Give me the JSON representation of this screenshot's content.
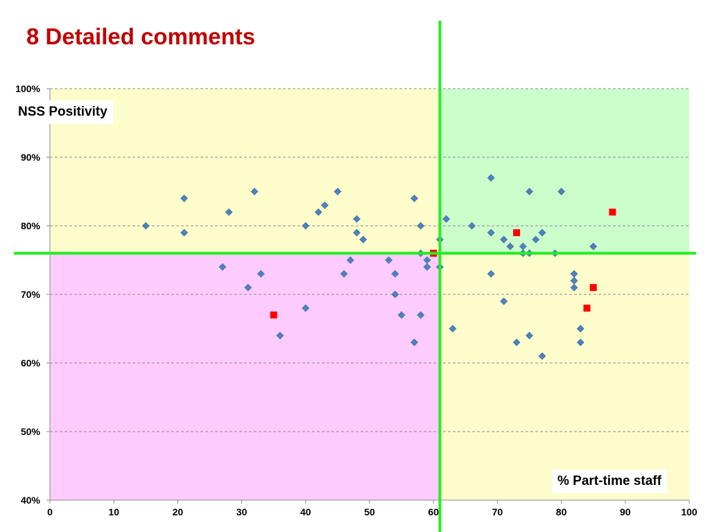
{
  "slide": {
    "title": "8 Detailed comments"
  },
  "chart_data": {
    "type": "scatter",
    "title": "",
    "xlabel": "% Part-time staff",
    "ylabel": "NSS Positivity",
    "xlim": [
      0,
      100
    ],
    "ylim": [
      0.4,
      1.0
    ],
    "x_ticks": [
      0,
      10,
      20,
      30,
      40,
      50,
      60,
      70,
      80,
      90,
      100
    ],
    "x_tick_labels": [
      "0",
      "10",
      "20",
      "30",
      "40",
      "50",
      "60",
      "70",
      "80",
      "90",
      "100"
    ],
    "y_ticks": [
      0.4,
      0.5,
      0.6,
      0.7,
      0.8,
      0.9,
      1.0
    ],
    "y_tick_labels": [
      "40%",
      "50%",
      "60%",
      "70%",
      "80%",
      "90%",
      "100%"
    ],
    "grid": "horizontal dashed",
    "reference_lines": {
      "x": 61,
      "y": 0.76
    },
    "quadrant_colors": {
      "top_left": "#fdfdcb",
      "top_right": "#ccfecc",
      "bottom_left": "#fecbfe",
      "bottom_right": "#fdfdcb"
    },
    "line_color": "#22ee22",
    "series": [
      {
        "marker": "diamond",
        "color": "#4f81bd",
        "points": [
          [
            15,
            0.8
          ],
          [
            21,
            0.84
          ],
          [
            21,
            0.79
          ],
          [
            27,
            0.74
          ],
          [
            28,
            0.82
          ],
          [
            31,
            0.71
          ],
          [
            32,
            0.85
          ],
          [
            33,
            0.73
          ],
          [
            36,
            0.64
          ],
          [
            40,
            0.8
          ],
          [
            40,
            0.68
          ],
          [
            42,
            0.82
          ],
          [
            43,
            0.83
          ],
          [
            45,
            0.85
          ],
          [
            46,
            0.73
          ],
          [
            47,
            0.75
          ],
          [
            48,
            0.81
          ],
          [
            48,
            0.79
          ],
          [
            49,
            0.78
          ],
          [
            53,
            0.75
          ],
          [
            54,
            0.73
          ],
          [
            54,
            0.7
          ],
          [
            55,
            0.67
          ],
          [
            57,
            0.84
          ],
          [
            57,
            0.63
          ],
          [
            58,
            0.8
          ],
          [
            58,
            0.76
          ],
          [
            58,
            0.67
          ],
          [
            59,
            0.75
          ],
          [
            59,
            0.74
          ],
          [
            61,
            0.78
          ],
          [
            61,
            0.74
          ],
          [
            62,
            0.81
          ],
          [
            63,
            0.65
          ],
          [
            66,
            0.8
          ],
          [
            69,
            0.87
          ],
          [
            69,
            0.79
          ],
          [
            69,
            0.73
          ],
          [
            71,
            0.78
          ],
          [
            71,
            0.69
          ],
          [
            72,
            0.77
          ],
          [
            73,
            0.63
          ],
          [
            74,
            0.77
          ],
          [
            74,
            0.76
          ],
          [
            75,
            0.85
          ],
          [
            75,
            0.76
          ],
          [
            75,
            0.64
          ],
          [
            76,
            0.78
          ],
          [
            77,
            0.79
          ],
          [
            77,
            0.61
          ],
          [
            79,
            0.76
          ],
          [
            80,
            0.85
          ],
          [
            82,
            0.73
          ],
          [
            82,
            0.72
          ],
          [
            82,
            0.71
          ],
          [
            83,
            0.65
          ],
          [
            83,
            0.63
          ],
          [
            85,
            0.77
          ]
        ]
      },
      {
        "marker": "square",
        "color": "#ff0000",
        "points": [
          [
            35,
            0.67
          ],
          [
            60,
            0.76
          ],
          [
            73,
            0.79
          ],
          [
            84,
            0.68
          ],
          [
            85,
            0.71
          ],
          [
            88,
            0.82
          ]
        ]
      }
    ]
  }
}
